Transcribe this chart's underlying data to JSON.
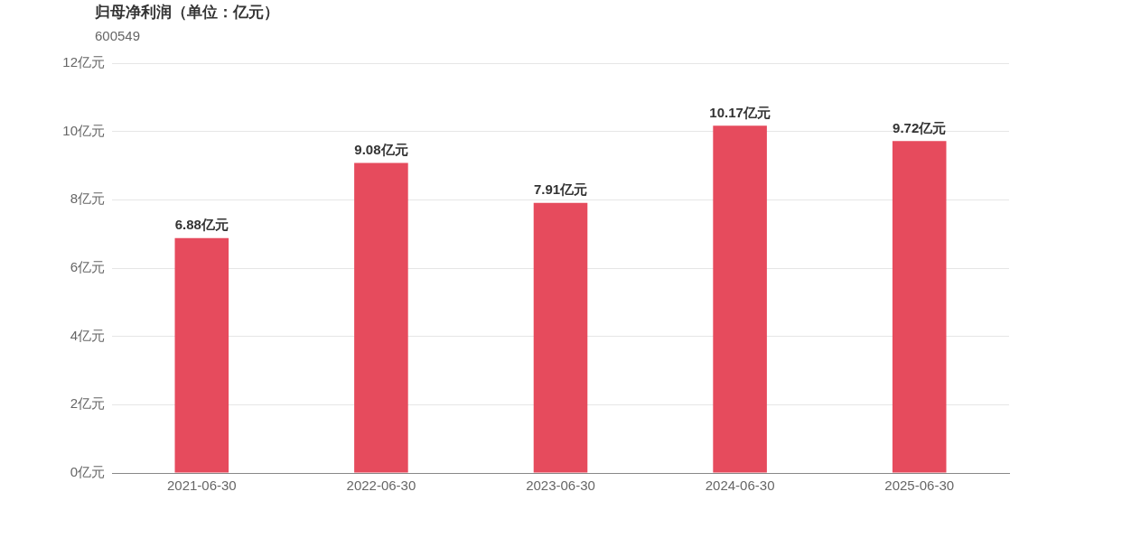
{
  "chart_data": {
    "type": "bar",
    "title": "归母净利润（单位：亿元）",
    "subtitle": "600549",
    "categories": [
      "2021-06-30",
      "2022-06-30",
      "2023-06-30",
      "2024-06-30",
      "2025-06-30"
    ],
    "values": [
      6.88,
      9.08,
      7.91,
      10.17,
      9.72
    ],
    "value_labels": [
      "6.88亿元",
      "9.08亿元",
      "7.91亿元",
      "10.17亿元",
      "9.72亿元"
    ],
    "color": "#e64b5d",
    "ylim": [
      0,
      12
    ],
    "yticks": [
      {
        "value": 0,
        "label": "0亿元"
      },
      {
        "value": 2,
        "label": "2亿元"
      },
      {
        "value": 4,
        "label": "4亿元"
      },
      {
        "value": 6,
        "label": "6亿元"
      },
      {
        "value": 8,
        "label": "8亿元"
      },
      {
        "value": 10,
        "label": "10亿元"
      },
      {
        "value": 12,
        "label": "12亿元"
      }
    ],
    "grid": "y",
    "legend": false
  }
}
